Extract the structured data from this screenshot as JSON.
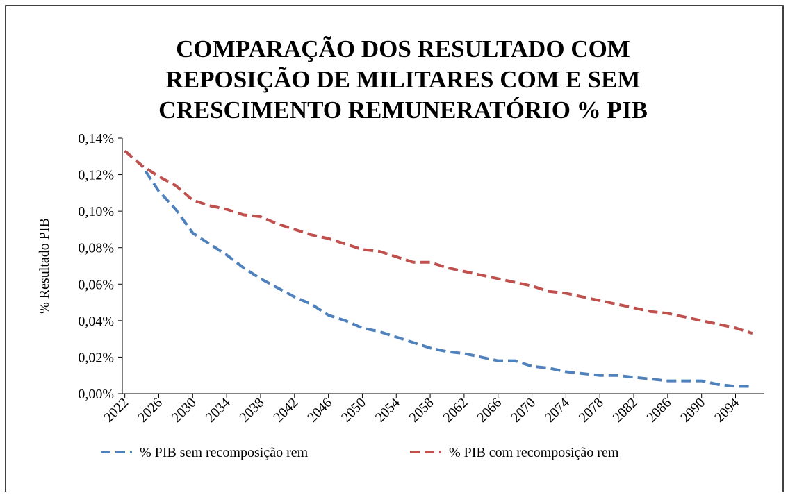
{
  "chart_data": {
    "type": "line",
    "title": [
      "COMPARAÇÃO DOS RESULTADO COM",
      "REPOSIÇÃO DE MILITARES COM E SEM",
      "CRESCIMENTO REMUNERATÓRIO % PIB"
    ],
    "y_label": "% Resultado PIB",
    "x": [
      2022,
      2024,
      2026,
      2028,
      2030,
      2032,
      2034,
      2036,
      2038,
      2040,
      2042,
      2044,
      2046,
      2048,
      2050,
      2052,
      2054,
      2056,
      2058,
      2060,
      2062,
      2064,
      2066,
      2068,
      2070,
      2072,
      2074,
      2076,
      2078,
      2080,
      2082,
      2084,
      2086,
      2088,
      2090,
      2092,
      2094,
      2096
    ],
    "xlim": [
      2021.7,
      2097.4
    ],
    "xticks": [
      2022,
      2026,
      2030,
      2034,
      2038,
      2042,
      2046,
      2050,
      2054,
      2058,
      2062,
      2066,
      2070,
      2074,
      2078,
      2082,
      2086,
      2090,
      2094
    ],
    "ylim": [
      0,
      0.14
    ],
    "yticks": [
      {
        "value": 0,
        "label": "0,00%"
      },
      {
        "value": 0.02,
        "label": "0,02%"
      },
      {
        "value": 0.04,
        "label": "0,04%"
      },
      {
        "value": 0.06,
        "label": "0,06%"
      },
      {
        "value": 0.08,
        "label": "0,08%"
      },
      {
        "value": 0.1,
        "label": "0,10%"
      },
      {
        "value": 0.12,
        "label": "0,12%"
      },
      {
        "value": 0.14,
        "label": "0,14%"
      }
    ],
    "grid": false,
    "legend": "bottom",
    "series": [
      {
        "name": "% PIB sem recomposição rem",
        "color": "#4f81bd",
        "values": [
          0.133,
          0.125,
          0.111,
          0.101,
          0.088,
          0.082,
          0.076,
          0.069,
          0.063,
          0.058,
          0.053,
          0.049,
          0.043,
          0.04,
          0.036,
          0.034,
          0.031,
          0.028,
          0.025,
          0.023,
          0.022,
          0.02,
          0.018,
          0.018,
          0.015,
          0.014,
          0.012,
          0.011,
          0.01,
          0.01,
          0.009,
          0.008,
          0.007,
          0.007,
          0.007,
          0.005,
          0.004,
          0.004
        ]
      },
      {
        "name": "% PIB com recomposição rem",
        "color": "#c0504d",
        "values": [
          0.133,
          0.125,
          0.119,
          0.114,
          0.106,
          0.103,
          0.101,
          0.098,
          0.097,
          0.093,
          0.09,
          0.087,
          0.085,
          0.082,
          0.079,
          0.078,
          0.075,
          0.072,
          0.072,
          0.069,
          0.067,
          0.065,
          0.063,
          0.061,
          0.059,
          0.056,
          0.055,
          0.053,
          0.051,
          0.049,
          0.047,
          0.045,
          0.044,
          0.042,
          0.04,
          0.038,
          0.036,
          0.033
        ]
      }
    ]
  }
}
